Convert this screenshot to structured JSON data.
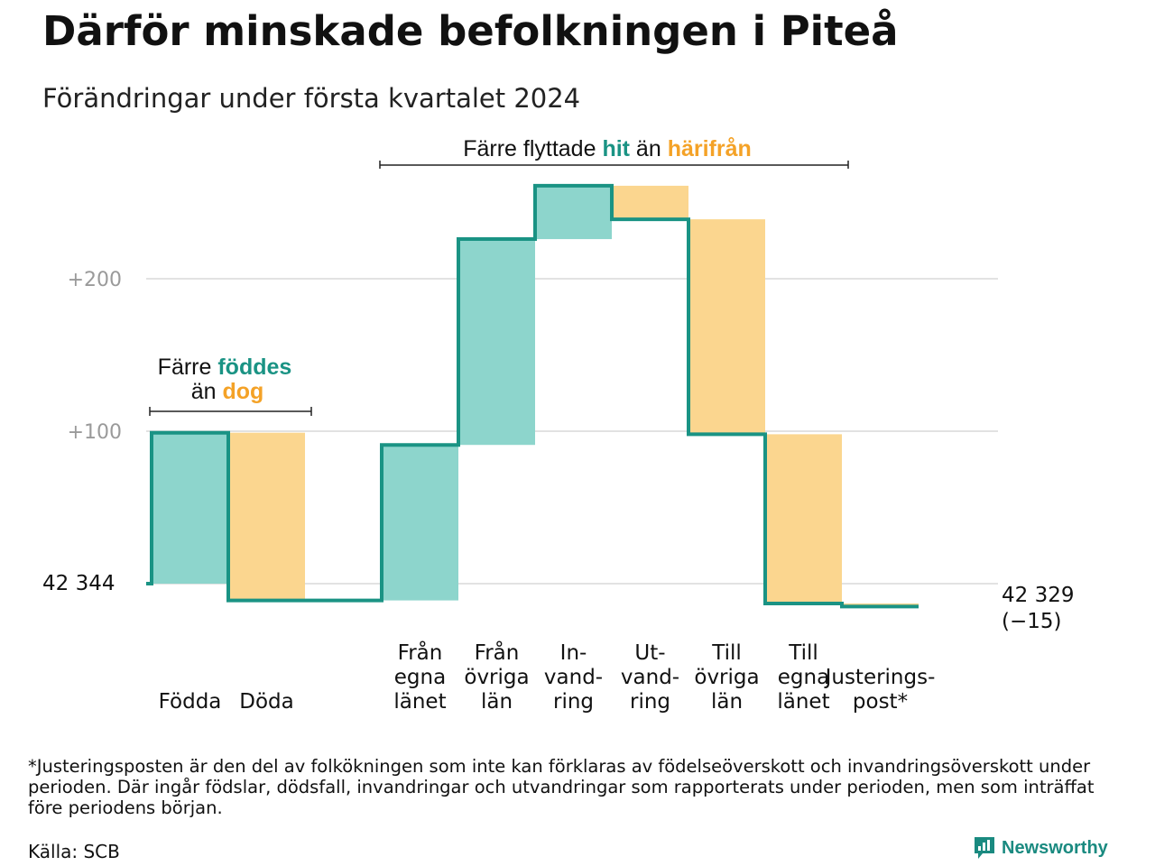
{
  "title": "Därför minskade befolkningen i Piteå",
  "subtitle": "Förändringar under första kvartalet 2024",
  "footnote": "*Justeringsposten är den del av folkökningen som inte kan förklaras av födelseöverskott och invandringsöverskott under perioden. Där ingår födslar, dödsfall, invandringar och utvandringar som rapporterats under perioden, men som inträffat före periodens början.",
  "source": "Källa: SCB",
  "brand": "Newsworthy",
  "colors": {
    "increase": "#8dd5cc",
    "decrease": "#fbd68f",
    "line": "#1a9384",
    "accent_teal": "#1a9384",
    "accent_orange": "#f4a227",
    "grid": "#e2e2e2",
    "tick": "#9a9a9a"
  },
  "chart_data": {
    "type": "waterfall",
    "start_label": "42  344",
    "start_value": 42344,
    "end_label": "42 329",
    "end_change_label": "(−15)",
    "end_value": 42329,
    "ylim": [
      -25,
      275
    ],
    "yticks": [
      {
        "value": 100,
        "label": "+100"
      },
      {
        "value": 200,
        "label": "+200"
      }
    ],
    "steps": [
      {
        "label": [
          "Födda"
        ],
        "change": 99,
        "sign": "increase"
      },
      {
        "label": [
          "Döda"
        ],
        "change": -110,
        "sign": "decrease"
      },
      {
        "label": [
          ""
        ],
        "change": 0,
        "sign": "none"
      },
      {
        "label": [
          "Från",
          "egna",
          "länet"
        ],
        "change": 102,
        "sign": "increase"
      },
      {
        "label": [
          "Från",
          "övriga",
          "län"
        ],
        "change": 135,
        "sign": "increase"
      },
      {
        "label": [
          "In-",
          "vand-",
          "ring"
        ],
        "change": 35,
        "sign": "increase"
      },
      {
        "label": [
          "Ut-",
          "vand-",
          "ring"
        ],
        "change": -22,
        "sign": "decrease"
      },
      {
        "label": [
          "Till",
          "övriga",
          "län"
        ],
        "change": -141,
        "sign": "decrease"
      },
      {
        "label": [
          "Till",
          "egna",
          "länet"
        ],
        "change": -111,
        "sign": "decrease"
      },
      {
        "label": [
          "Justerings-",
          "post*"
        ],
        "change": -2,
        "sign": "decrease"
      }
    ],
    "annotations": [
      {
        "parts": [
          {
            "text": "Färre ",
            "style": "plain"
          },
          {
            "text": "föddes",
            "style": "teal"
          }
        ],
        "parts2": [
          {
            "text": "än ",
            "style": "plain"
          },
          {
            "text": "dog",
            "style": "orange"
          }
        ]
      },
      {
        "parts": [
          {
            "text": "Färre flyttade ",
            "style": "plain"
          },
          {
            "text": "hit",
            "style": "teal"
          },
          {
            "text": " än ",
            "style": "plain"
          },
          {
            "text": "härifrån",
            "style": "orange"
          }
        ]
      }
    ]
  }
}
